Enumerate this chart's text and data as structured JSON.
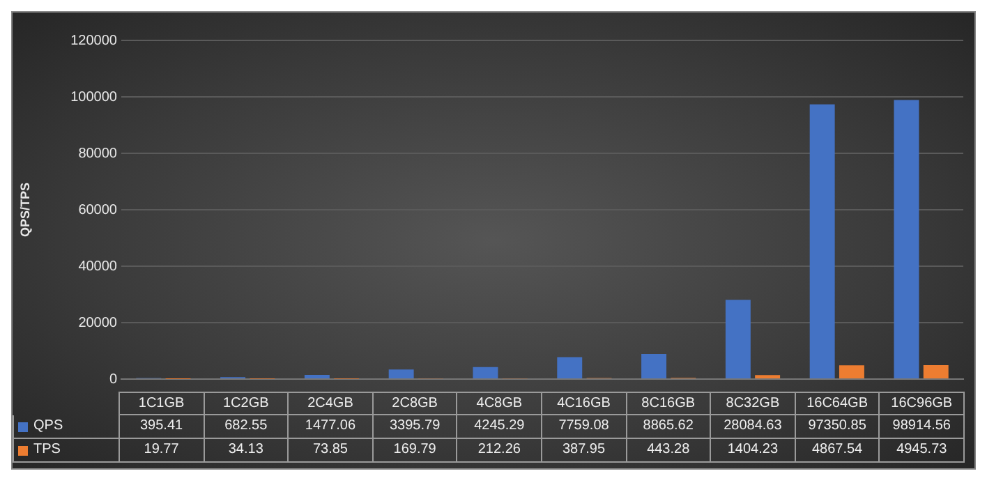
{
  "chart_data": {
    "type": "bar",
    "ylabel": "QPS/TPS",
    "categories": [
      "1C1GB",
      "1C2GB",
      "2C4GB",
      "2C8GB",
      "4C8GB",
      "4C16GB",
      "8C16GB",
      "8C32GB",
      "16C64GB",
      "16C96GB"
    ],
    "series": [
      {
        "name": "QPS",
        "color": "#4472c4",
        "values": [
          395.41,
          682.55,
          1477.06,
          3395.79,
          4245.29,
          7759.08,
          8865.62,
          28084.63,
          97350.85,
          98914.56
        ]
      },
      {
        "name": "TPS",
        "color": "#ed7d31",
        "values": [
          19.77,
          34.13,
          73.85,
          169.79,
          212.26,
          387.95,
          443.28,
          1404.23,
          4867.54,
          4945.73
        ]
      }
    ],
    "ylim": [
      0,
      120000
    ],
    "yticks": [
      0,
      20000,
      40000,
      60000,
      80000,
      100000,
      120000
    ],
    "grid": "y",
    "legend": "bottom left",
    "data_labels": true
  }
}
